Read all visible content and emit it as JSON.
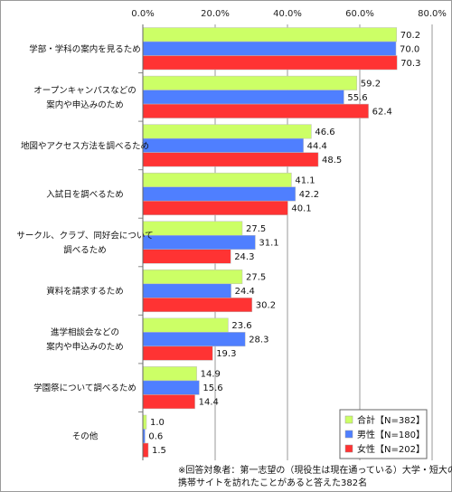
{
  "chart_data": {
    "type": "bar",
    "orientation": "horizontal",
    "categories": [
      [
        "学部・学科の案内を見るため"
      ],
      [
        "オープンキャンパスなどの",
        "案内や申込みのため"
      ],
      [
        "地図やアクセス方法を調べるため"
      ],
      [
        "入試日を調べるため"
      ],
      [
        "サークル、クラブ、同好会について",
        "調べるため"
      ],
      [
        "資料を請求するため"
      ],
      [
        "進学相談会などの",
        "案内や申込みのため"
      ],
      [
        "学園祭について調べるため"
      ],
      [
        "その他"
      ]
    ],
    "series": [
      {
        "name": "合計【N=382】",
        "color": "#ccff66",
        "values": [
          70.2,
          59.2,
          46.6,
          41.1,
          27.5,
          27.5,
          23.6,
          14.9,
          1.0
        ]
      },
      {
        "name": "男性【N=180】",
        "color": "#4f7fff",
        "values": [
          70.0,
          55.6,
          44.4,
          42.2,
          31.1,
          24.4,
          28.3,
          15.6,
          0.6
        ]
      },
      {
        "name": "女性【N=202】",
        "color": "#ff3333",
        "values": [
          70.3,
          62.4,
          48.5,
          40.1,
          24.3,
          30.2,
          19.3,
          14.4,
          1.5
        ]
      }
    ],
    "xlim": [
      0,
      80
    ],
    "xticks": [
      "0.0%",
      "20.0%",
      "40.0%",
      "60.0%",
      "80.0%"
    ],
    "grid": true,
    "legend_position": "bottom-right"
  },
  "footnote": {
    "line1": "※回答対象者：第一志望の（現役生は現在通っている）大学・短大の",
    "line2": "携帯サイトを訪れたことがあると答えた382名"
  }
}
